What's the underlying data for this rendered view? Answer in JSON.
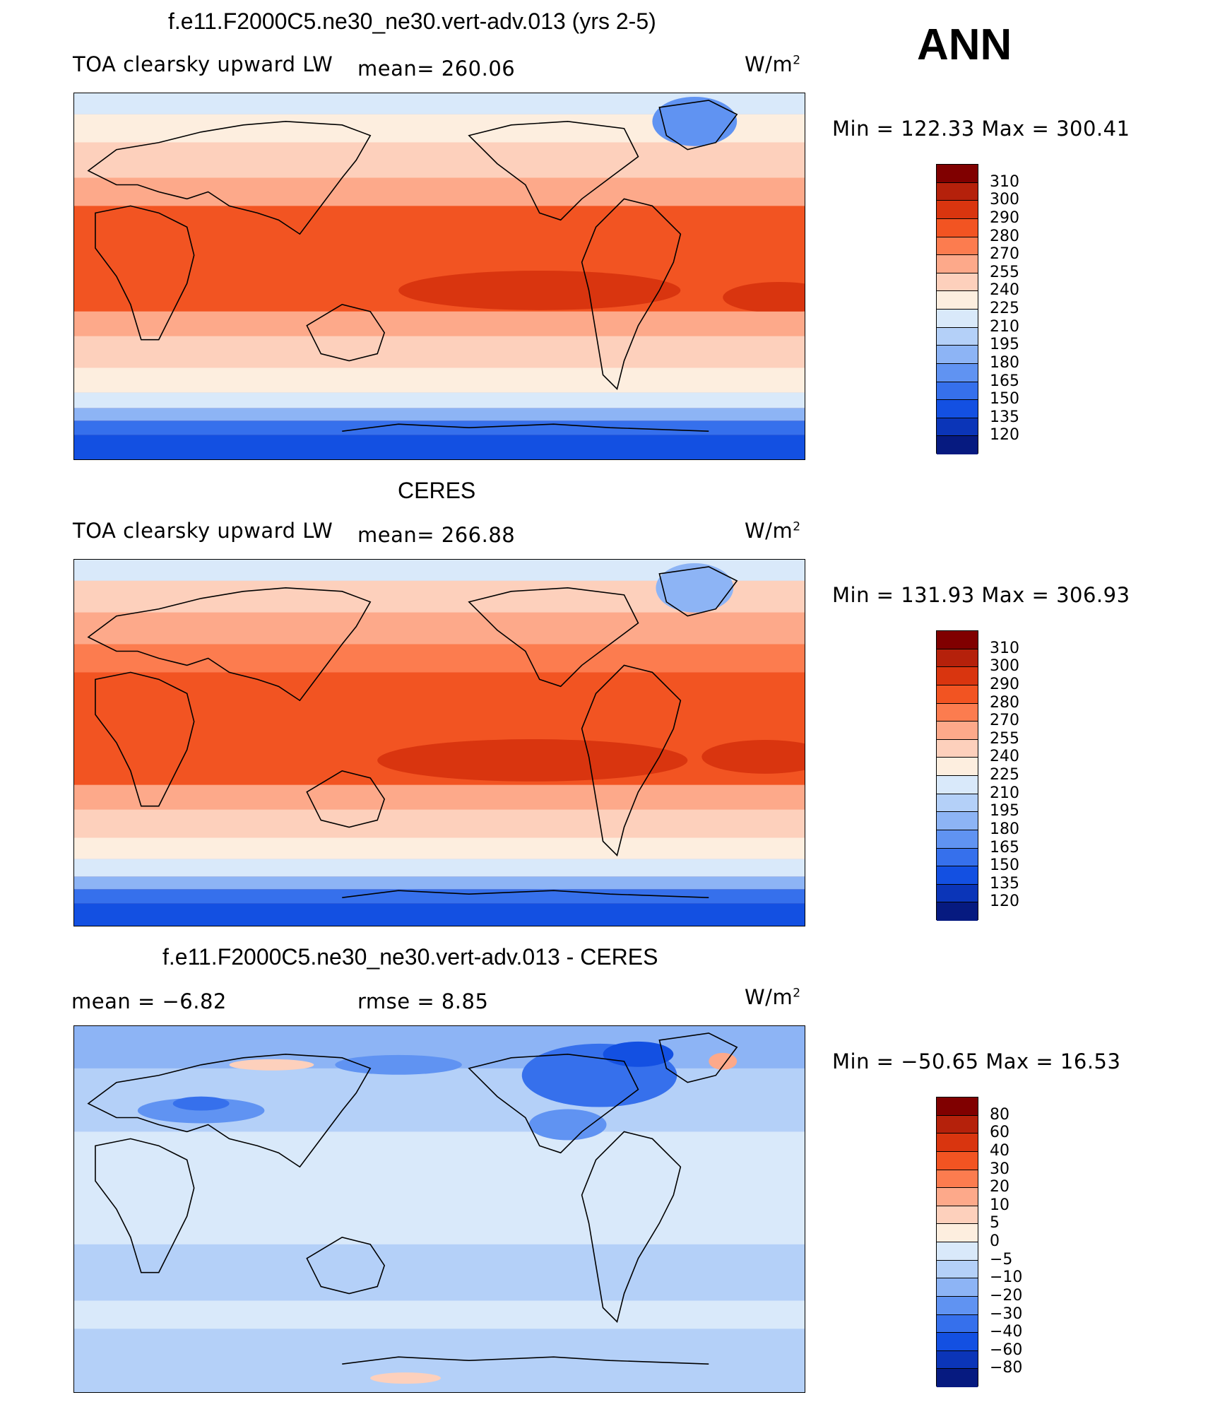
{
  "season": "ANN",
  "panels": [
    {
      "title": "f.e11.F2000C5.ne30_ne30.vert-adv.013 (yrs 2-5)",
      "left_text": "TOA clearsky upward LW",
      "mid_text": "mean=  260.06",
      "units": "W/m",
      "units_sup": "2",
      "minmax": "Min  =  122.33  Max  =  300.41"
    },
    {
      "title": "CERES",
      "left_text": "TOA clearsky upward LW",
      "mid_text": "mean=  266.88",
      "units": "W/m",
      "units_sup": "2",
      "minmax": "Min  =  131.93  Max  =  306.93"
    },
    {
      "title": "f.e11.F2000C5.ne30_ne30.vert-adv.013 - CERES",
      "left_text": "mean  =    −6.82",
      "mid_text": "rmse  =     8.85",
      "units": "W/m",
      "units_sup": "2",
      "minmax": "Min  =  −50.65  Max  =    16.53"
    }
  ],
  "colorbars": {
    "abs_labels": [
      "310",
      "300",
      "290",
      "280",
      "270",
      "255",
      "240",
      "225",
      "210",
      "195",
      "180",
      "165",
      "150",
      "135",
      "120"
    ],
    "abs_colors": [
      "#800000",
      "#b5210b",
      "#d9350f",
      "#f25422",
      "#fc7c4f",
      "#fda98a",
      "#fdd0bc",
      "#fdeedf",
      "#d9e9fa",
      "#b4d0f8",
      "#8db4f5",
      "#6093f2",
      "#3670ec",
      "#1350e2",
      "#0b35b8",
      "#061a80"
    ],
    "diff_labels": [
      "80",
      "60",
      "40",
      "30",
      "20",
      "10",
      "5",
      "0",
      "−5",
      "−10",
      "−20",
      "−30",
      "−40",
      "−60",
      "−80"
    ],
    "diff_colors": [
      "#800000",
      "#b5210b",
      "#d9350f",
      "#f25422",
      "#fc7c4f",
      "#fda98a",
      "#fdd0bc",
      "#fdeedf",
      "#d9e9fa",
      "#b4d0f8",
      "#8db4f5",
      "#6093f2",
      "#3670ec",
      "#1350e2",
      "#0b35b8",
      "#061a80"
    ]
  }
}
